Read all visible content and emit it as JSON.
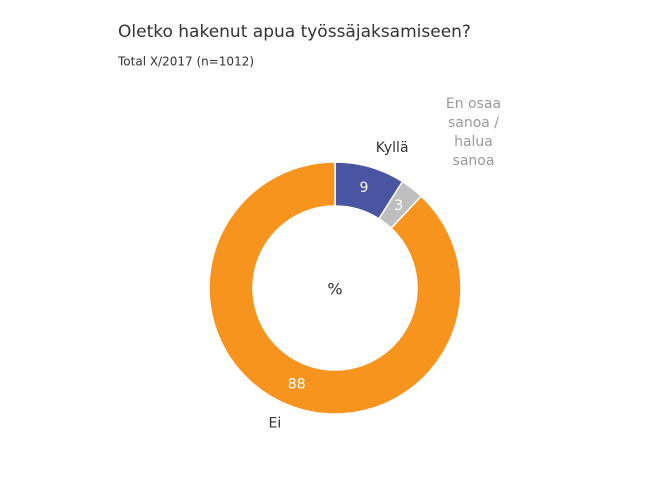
{
  "chart_data": {
    "type": "donut",
    "title": "Oletko hakenut apua työssäjaksamiseen?",
    "subtitle": "Total X/2017 (n=1012)",
    "center_label": "%",
    "categories": [
      "Kyllä",
      "En osaa sanoa / halua sanoa",
      "Ei"
    ],
    "values": [
      9,
      3,
      88
    ],
    "colors": [
      "#4a55a2",
      "#bfbfbf",
      "#f7941d"
    ],
    "label_colors": [
      "#333333",
      "#999999",
      "#333333"
    ]
  }
}
